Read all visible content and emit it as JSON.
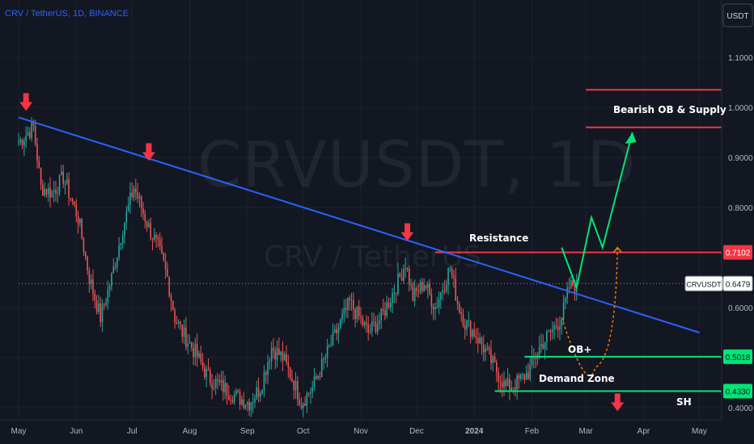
{
  "header": {
    "title": "CRV / TetherUS, 1D, BINANCE"
  },
  "watermark": {
    "main": "CRVUSDT, 1D",
    "sub": "CRV / TetherUS"
  },
  "currency_button": "USDT",
  "annotations": {
    "bearish_ob": "Bearish OB & Supply",
    "resistance": "Resistance",
    "ob_plus": "OB+",
    "demand_zone": "Demand Zone",
    "sh": "SH"
  },
  "price_tags": {
    "resistance": {
      "label": "0.7102",
      "value": 0.7102,
      "color": "#f23645"
    },
    "current_symbol": "CRVUSDT",
    "current": {
      "label": "0.6479",
      "value": 0.6479
    },
    "ob": {
      "label": "0.5018",
      "value": 0.5018,
      "color": "#00e676"
    },
    "demand": {
      "label": "0.4330",
      "value": 0.433,
      "color": "#00e676"
    }
  },
  "chart_data": {
    "type": "candlestick",
    "title": "CRV / TetherUS, 1D, BINANCE",
    "xlabel": "",
    "ylabel": "",
    "ylim": [
      0.38,
      1.12
    ],
    "y_ticks": [
      "1.1000",
      "1.0000",
      "0.9000",
      "0.8000",
      "0.6000",
      "0.5000",
      "0.4000"
    ],
    "y_tick_values": [
      1.1,
      1.0,
      0.9,
      0.8,
      0.6,
      0.5,
      0.4
    ],
    "x_ticks": [
      "May",
      "Jun",
      "Jul",
      "Aug",
      "Sep",
      "Oct",
      "Nov",
      "Dec",
      "2024",
      "Feb",
      "Mar",
      "Apr",
      "May"
    ],
    "x_tick_days": [
      0,
      31,
      61,
      92,
      123,
      153,
      184,
      214,
      245,
      276,
      305,
      336,
      366
    ],
    "price_anchors_day_close": [
      [
        0,
        0.93
      ],
      [
        5,
        0.95
      ],
      [
        8,
        0.96
      ],
      [
        12,
        0.84
      ],
      [
        18,
        0.83
      ],
      [
        24,
        0.86
      ],
      [
        28,
        0.82
      ],
      [
        32,
        0.78
      ],
      [
        38,
        0.66
      ],
      [
        44,
        0.58
      ],
      [
        50,
        0.66
      ],
      [
        56,
        0.76
      ],
      [
        62,
        0.84
      ],
      [
        66,
        0.8
      ],
      [
        70,
        0.76
      ],
      [
        75,
        0.72
      ],
      [
        80,
        0.66
      ],
      [
        84,
        0.58
      ],
      [
        88,
        0.55
      ],
      [
        95,
        0.51
      ],
      [
        102,
        0.46
      ],
      [
        110,
        0.44
      ],
      [
        118,
        0.42
      ],
      [
        124,
        0.41
      ],
      [
        130,
        0.44
      ],
      [
        136,
        0.52
      ],
      [
        142,
        0.5
      ],
      [
        148,
        0.45
      ],
      [
        152,
        0.41
      ],
      [
        158,
        0.44
      ],
      [
        165,
        0.5
      ],
      [
        172,
        0.56
      ],
      [
        178,
        0.61
      ],
      [
        183,
        0.58
      ],
      [
        188,
        0.55
      ],
      [
        195,
        0.58
      ],
      [
        200,
        0.62
      ],
      [
        205,
        0.66
      ],
      [
        208,
        0.69
      ],
      [
        212,
        0.62
      ],
      [
        218,
        0.65
      ],
      [
        224,
        0.6
      ],
      [
        228,
        0.64
      ],
      [
        232,
        0.68
      ],
      [
        236,
        0.61
      ],
      [
        240,
        0.57
      ],
      [
        245,
        0.55
      ],
      [
        250,
        0.52
      ],
      [
        256,
        0.48
      ],
      [
        262,
        0.44
      ],
      [
        268,
        0.45
      ],
      [
        274,
        0.47
      ],
      [
        280,
        0.52
      ],
      [
        286,
        0.55
      ],
      [
        292,
        0.58
      ],
      [
        296,
        0.64
      ],
      [
        300,
        0.6479
      ]
    ],
    "swing_high_markers": [
      {
        "day": 4,
        "price": 0.98
      },
      {
        "day": 70,
        "price": 0.88
      },
      {
        "day": 209,
        "price": 0.72
      },
      {
        "day": 322,
        "price": 0.38
      }
    ],
    "trendline": {
      "x": [
        0,
        366
      ],
      "y": [
        0.98,
        0.55
      ],
      "color": "#2962ff"
    },
    "levels": [
      {
        "name": "bearish_ob_top",
        "value": 1.035,
        "color": "#f23645",
        "x_start": 305
      },
      {
        "name": "bearish_ob_bottom",
        "value": 0.96,
        "color": "#f23645",
        "x_start": 305
      },
      {
        "name": "resistance",
        "value": 0.7102,
        "color": "#f23645",
        "x_start": 224
      },
      {
        "name": "ob_plus",
        "value": 0.5018,
        "color": "#00e676",
        "x_start": 272
      },
      {
        "name": "demand_zone",
        "value": 0.433,
        "color": "#00e676",
        "x_start": 256
      },
      {
        "name": "current_price",
        "value": 0.6479,
        "color": "#9598a1",
        "x_start": 0
      }
    ],
    "projection_path": [
      [
        292,
        0.72
      ],
      [
        300,
        0.64
      ],
      [
        308,
        0.78
      ],
      [
        314,
        0.72
      ],
      [
        330,
        0.95
      ]
    ],
    "alt_projection_path": [
      [
        292,
        0.58
      ],
      [
        302,
        0.52
      ],
      [
        310,
        0.48
      ],
      [
        318,
        0.56
      ],
      [
        322,
        0.72
      ]
    ]
  }
}
